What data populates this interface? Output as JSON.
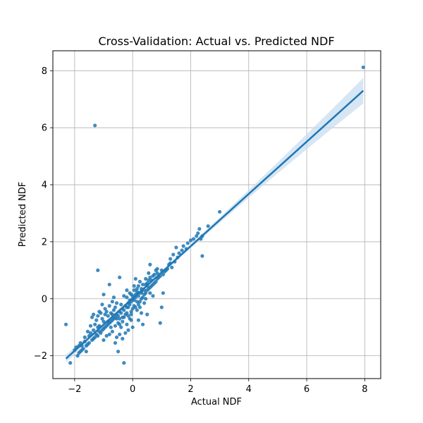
{
  "chart_data": {
    "type": "scatter",
    "title": "Cross-Validation: Actual vs. Predicted NDF",
    "xlabel": "Actual NDF",
    "ylabel": "Predicted NDF",
    "xlim": [
      -2.75,
      8.55
    ],
    "ylim": [
      -2.8,
      8.7
    ],
    "xticks": [
      -2,
      0,
      2,
      4,
      6,
      8
    ],
    "yticks": [
      -2,
      0,
      2,
      4,
      6,
      8
    ],
    "xtick_labels": [
      "−2",
      "0",
      "2",
      "4",
      "6",
      "8"
    ],
    "ytick_labels": [
      "−2",
      "0",
      "2",
      "4",
      "6",
      "8"
    ],
    "grid": true,
    "point_color": "#1f77b4",
    "line_color": "#1f77b4",
    "band_color": "#c6dbef",
    "series": [
      {
        "points": [
          [
            7.95,
            8.12
          ],
          [
            -1.3,
            6.08
          ],
          [
            -2.3,
            -0.9
          ],
          [
            -2.15,
            -2.25
          ],
          [
            -1.2,
            1.0
          ],
          [
            -0.8,
            0.5
          ],
          [
            -0.45,
            0.75
          ],
          [
            -1.0,
            0.15
          ],
          [
            -0.3,
            -2.25
          ],
          [
            -0.5,
            -1.85
          ],
          [
            0.95,
            -0.85
          ],
          [
            2.4,
            1.5
          ],
          [
            3.0,
            3.05
          ],
          [
            2.6,
            2.55
          ],
          [
            2.3,
            2.45
          ],
          [
            2.2,
            2.2
          ],
          [
            1.3,
            1.4
          ],
          [
            1.0,
            1.0
          ],
          [
            1.5,
            1.8
          ],
          [
            1.3,
            1.25
          ],
          [
            1.05,
            0.2
          ],
          [
            1.0,
            -0.3
          ],
          [
            1.05,
            0.85
          ],
          [
            0.85,
            0.9
          ],
          [
            0.7,
            0.8
          ],
          [
            0.6,
            0.75
          ],
          [
            0.55,
            0.65
          ],
          [
            0.5,
            0.55
          ],
          [
            0.45,
            0.5
          ],
          [
            0.4,
            0.3
          ],
          [
            0.3,
            0.2
          ],
          [
            0.2,
            0.1
          ],
          [
            0.15,
            0.25
          ],
          [
            0.1,
            0.05
          ],
          [
            0.05,
            -0.05
          ],
          [
            0.0,
            0.1
          ],
          [
            -0.05,
            -0.1
          ],
          [
            -0.1,
            -0.2
          ],
          [
            -0.15,
            -0.15
          ],
          [
            -0.2,
            -0.3
          ],
          [
            -0.25,
            -0.25
          ],
          [
            -0.3,
            -0.4
          ],
          [
            -0.35,
            -0.35
          ],
          [
            -0.4,
            -0.5
          ],
          [
            -0.45,
            -0.45
          ],
          [
            -0.5,
            -0.6
          ],
          [
            -0.55,
            -0.55
          ],
          [
            -0.6,
            -0.65
          ],
          [
            -0.65,
            -0.7
          ],
          [
            -0.7,
            -0.75
          ],
          [
            -0.75,
            -0.8
          ],
          [
            -0.8,
            -0.85
          ],
          [
            -0.85,
            -0.9
          ],
          [
            -0.9,
            -0.95
          ],
          [
            -0.95,
            -1.0
          ],
          [
            -1.0,
            -1.05
          ],
          [
            -1.05,
            -1.1
          ],
          [
            -1.1,
            -1.2
          ],
          [
            -1.15,
            -1.15
          ],
          [
            -1.2,
            -1.3
          ],
          [
            -1.25,
            -1.25
          ],
          [
            -1.3,
            -1.35
          ],
          [
            -1.35,
            -1.4
          ],
          [
            -1.4,
            -1.45
          ],
          [
            -1.5,
            -1.55
          ],
          [
            -1.55,
            -1.6
          ],
          [
            -1.6,
            -1.65
          ],
          [
            -1.7,
            -1.75
          ],
          [
            -1.75,
            -1.8
          ],
          [
            -1.8,
            -1.85
          ],
          [
            -1.85,
            -1.9
          ],
          [
            -1.9,
            -2.0
          ],
          [
            -1.65,
            -1.5
          ],
          [
            -1.75,
            -1.65
          ],
          [
            -1.6,
            -1.85
          ],
          [
            -1.5,
            -1.3
          ],
          [
            -1.45,
            -1.2
          ],
          [
            -1.3,
            -0.9
          ],
          [
            -1.25,
            -0.75
          ],
          [
            -1.2,
            -0.6
          ],
          [
            -1.1,
            -0.5
          ],
          [
            -1.05,
            -0.7
          ],
          [
            -0.95,
            -0.55
          ],
          [
            -0.9,
            -0.45
          ],
          [
            -0.85,
            -0.6
          ],
          [
            -0.75,
            -0.5
          ],
          [
            -0.7,
            -0.55
          ],
          [
            -0.65,
            -0.4
          ],
          [
            -0.6,
            -0.3
          ],
          [
            -0.55,
            -0.7
          ],
          [
            -0.5,
            -0.85
          ],
          [
            -0.45,
            -0.9
          ],
          [
            -0.4,
            -1.0
          ],
          [
            -0.35,
            -0.8
          ],
          [
            -0.3,
            -0.65
          ],
          [
            -0.25,
            -0.55
          ],
          [
            -0.2,
            -0.5
          ],
          [
            -0.15,
            -0.6
          ],
          [
            -0.1,
            -0.7
          ],
          [
            -0.05,
            -0.45
          ],
          [
            0.0,
            -0.35
          ],
          [
            0.05,
            -0.25
          ],
          [
            0.1,
            -0.3
          ],
          [
            0.15,
            -0.4
          ],
          [
            0.2,
            -0.2
          ],
          [
            0.25,
            -0.1
          ],
          [
            0.3,
            0.0
          ],
          [
            0.35,
            0.05
          ],
          [
            0.4,
            0.15
          ],
          [
            0.45,
            0.2
          ],
          [
            0.5,
            0.3
          ],
          [
            0.55,
            0.35
          ],
          [
            0.6,
            0.4
          ],
          [
            0.65,
            0.45
          ],
          [
            0.7,
            0.5
          ],
          [
            0.75,
            0.55
          ],
          [
            0.8,
            0.6
          ],
          [
            0.85,
            0.7
          ],
          [
            0.9,
            0.75
          ],
          [
            0.95,
            0.8
          ],
          [
            1.1,
            0.95
          ],
          [
            1.2,
            1.05
          ],
          [
            1.35,
            1.1
          ],
          [
            1.45,
            1.3
          ],
          [
            1.55,
            1.45
          ],
          [
            1.6,
            1.6
          ],
          [
            1.7,
            1.7
          ],
          [
            1.75,
            1.85
          ],
          [
            1.85,
            1.75
          ],
          [
            1.9,
            1.95
          ],
          [
            2.0,
            2.05
          ],
          [
            2.1,
            2.1
          ],
          [
            2.25,
            2.3
          ],
          [
            2.35,
            2.1
          ],
          [
            2.4,
            2.2
          ],
          [
            1.4,
            1.55
          ],
          [
            1.25,
            1.2
          ],
          [
            1.15,
            1.0
          ],
          [
            0.6,
            1.2
          ],
          [
            0.8,
            1.0
          ],
          [
            0.1,
            0.7
          ],
          [
            0.2,
            0.45
          ],
          [
            -0.1,
            0.2
          ],
          [
            -0.2,
            0.3
          ],
          [
            0.3,
            -0.5
          ],
          [
            0.5,
            -0.55
          ],
          [
            0.2,
            -0.75
          ],
          [
            0.35,
            -0.9
          ],
          [
            0.0,
            -1.0
          ],
          [
            -0.15,
            -1.1
          ],
          [
            -0.25,
            -1.2
          ],
          [
            -0.45,
            -1.25
          ],
          [
            -0.55,
            -1.35
          ],
          [
            -0.7,
            -1.15
          ],
          [
            -0.8,
            -1.25
          ],
          [
            -0.9,
            -1.3
          ],
          [
            -1.0,
            -1.45
          ],
          [
            -0.6,
            -1.55
          ],
          [
            -0.35,
            -1.4
          ],
          [
            -0.2,
            -0.9
          ],
          [
            -0.05,
            -0.75
          ],
          [
            -0.4,
            -0.2
          ],
          [
            -0.55,
            -0.15
          ],
          [
            -0.7,
            -0.1
          ],
          [
            -0.8,
            -0.25
          ],
          [
            -0.95,
            -0.35
          ],
          [
            -1.05,
            -0.2
          ],
          [
            -1.15,
            -0.45
          ],
          [
            -1.35,
            -0.55
          ],
          [
            -1.4,
            -0.65
          ],
          [
            -0.65,
            0.05
          ],
          [
            -0.3,
            0.1
          ],
          [
            -0.2,
            0.05
          ],
          [
            0.05,
            0.3
          ],
          [
            0.15,
            0.35
          ],
          [
            0.25,
            0.6
          ],
          [
            0.35,
            0.5
          ],
          [
            0.45,
            0.7
          ],
          [
            0.55,
            0.9
          ],
          [
            0.65,
            0.65
          ],
          [
            0.75,
            0.85
          ],
          [
            0.85,
            1.05
          ],
          [
            0.45,
            0.0
          ],
          [
            0.6,
            0.2
          ],
          [
            0.7,
            0.1
          ],
          [
            0.25,
            -0.3
          ],
          [
            0.4,
            -0.15
          ],
          [
            -0.05,
            -0.55
          ],
          [
            -0.15,
            -0.3
          ],
          [
            -0.35,
            -0.65
          ],
          [
            -0.45,
            -0.7
          ],
          [
            -0.6,
            -0.95
          ],
          [
            -0.75,
            -1.0
          ],
          [
            -0.85,
            -0.8
          ],
          [
            -1.0,
            -0.8
          ],
          [
            -1.15,
            -0.95
          ],
          [
            -1.2,
            -1.0
          ],
          [
            -1.35,
            -1.1
          ],
          [
            -1.45,
            -0.95
          ],
          [
            -1.55,
            -1.15
          ],
          [
            -1.65,
            -1.35
          ],
          [
            -1.8,
            -1.55
          ],
          [
            -1.95,
            -1.7
          ],
          [
            -2.0,
            -1.8
          ],
          [
            -1.85,
            -1.65
          ],
          [
            -0.1,
            -0.05
          ],
          [
            0.0,
            0.0
          ],
          [
            0.1,
            0.15
          ],
          [
            0.2,
            0.2
          ],
          [
            0.3,
            0.35
          ],
          [
            0.05,
            0.45
          ],
          [
            -0.05,
            0.15
          ],
          [
            0.15,
            -0.1
          ],
          [
            0.3,
            0.25
          ],
          [
            0.5,
            0.45
          ]
        ]
      }
    ],
    "regression": {
      "x": [
        -2.3,
        7.95
      ],
      "y": [
        -2.1,
        7.3
      ],
      "band_half_width": [
        0.06,
        0.45
      ]
    }
  }
}
